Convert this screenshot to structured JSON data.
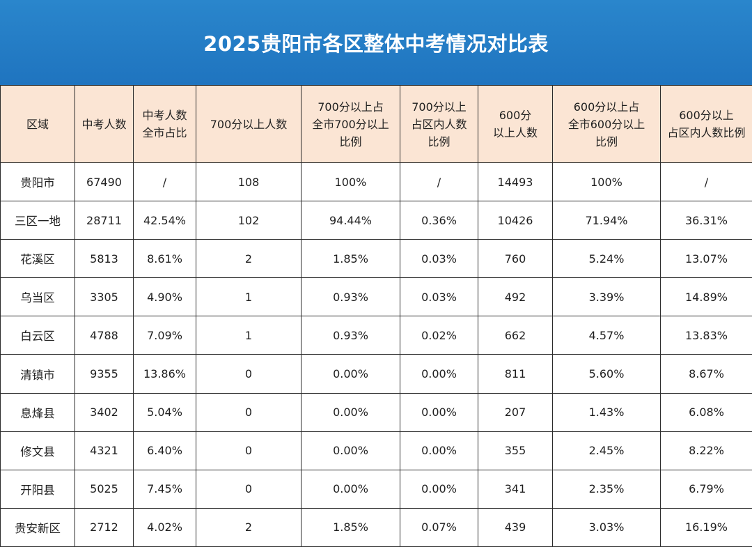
{
  "title": "2025贵阳市各区整体中考情况对比表",
  "colors": {
    "title_bg": "#1f74bf",
    "header_bg": "#fbe5d4",
    "border": "#2b2b2b"
  },
  "table": {
    "headers": [
      "区域",
      "中考人数",
      "中考人数\n全市占比",
      "700分以上人数",
      "700分以上占\n全市700分以上\n比例",
      "700分以上\n占区内人数\n比例",
      "600分\n以上人数",
      "600分以上占\n全市600分以上\n比例",
      "600分以上\n占区内人数比例"
    ],
    "rows": [
      [
        "贵阳市",
        "67490",
        "/",
        "108",
        "100%",
        "/",
        "14493",
        "100%",
        "/"
      ],
      [
        "三区一地",
        "28711",
        "42.54%",
        "102",
        "94.44%",
        "0.36%",
        "10426",
        "71.94%",
        "36.31%"
      ],
      [
        "花溪区",
        "5813",
        "8.61%",
        "2",
        "1.85%",
        "0.03%",
        "760",
        "5.24%",
        "13.07%"
      ],
      [
        "乌当区",
        "3305",
        "4.90%",
        "1",
        "0.93%",
        "0.03%",
        "492",
        "3.39%",
        "14.89%"
      ],
      [
        "白云区",
        "4788",
        "7.09%",
        "1",
        "0.93%",
        "0.02%",
        "662",
        "4.57%",
        "13.83%"
      ],
      [
        "清镇市",
        "9355",
        "13.86%",
        "0",
        "0.00%",
        "0.00%",
        "811",
        "5.60%",
        "8.67%"
      ],
      [
        "息烽县",
        "3402",
        "5.04%",
        "0",
        "0.00%",
        "0.00%",
        "207",
        "1.43%",
        "6.08%"
      ],
      [
        "修文县",
        "4321",
        "6.40%",
        "0",
        "0.00%",
        "0.00%",
        "355",
        "2.45%",
        "8.22%"
      ],
      [
        "开阳县",
        "5025",
        "7.45%",
        "0",
        "0.00%",
        "0.00%",
        "341",
        "2.35%",
        "6.79%"
      ],
      [
        "贵安新区",
        "2712",
        "4.02%",
        "2",
        "1.85%",
        "0.07%",
        "439",
        "3.03%",
        "16.19%"
      ]
    ]
  }
}
